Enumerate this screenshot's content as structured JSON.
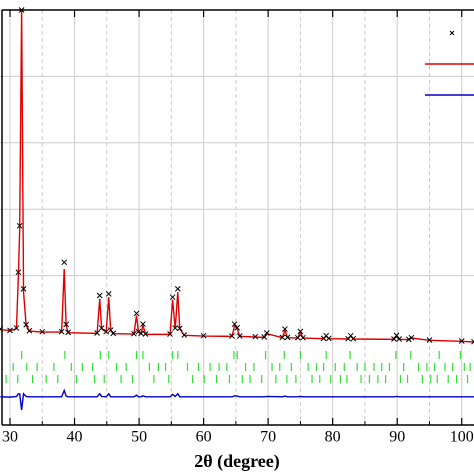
{
  "chart_data": {
    "type": "line",
    "xlabel": "2θ (degree)",
    "xlim": [
      28.45,
      101.9
    ],
    "ylim": [
      -25,
      100
    ],
    "xticks": [
      30,
      40,
      50,
      60,
      70,
      80,
      90,
      100
    ],
    "xminor": [
      35,
      45,
      55,
      65,
      75,
      85,
      95
    ],
    "ygrid": [
      100,
      80,
      60,
      40,
      20
    ],
    "grid": true,
    "x": [
      28.5,
      30,
      31,
      31.3,
      31.5,
      31.8,
      32.1,
      32.5,
      33,
      35,
      38,
      38.4,
      38.7,
      39,
      43.5,
      43.9,
      44.2,
      44.9,
      45.3,
      45.6,
      46,
      49.2,
      49.6,
      49.9,
      50.3,
      50.6,
      51,
      54.8,
      55.2,
      55.6,
      56,
      56.3,
      57,
      60,
      64.4,
      64.8,
      65.2,
      65.6,
      68,
      69.4,
      69.8,
      72.2,
      72.6,
      73,
      74.6,
      75,
      75.4,
      78.6,
      79,
      79.4,
      82.4,
      82.8,
      83.2,
      89.5,
      89.9,
      90.3,
      91.8,
      92.2,
      95,
      100,
      101.9
    ],
    "series": [
      {
        "marker": "x",
        "color": "#000000",
        "values": [
          3.9,
          3.5,
          4.2,
          21,
          35,
          100,
          16,
          5.2,
          3.4,
          3.1,
          3.1,
          24,
          5.3,
          2.9,
          2.7,
          14,
          4.2,
          3.1,
          14.5,
          3.6,
          2.6,
          2.5,
          8.6,
          3.1,
          2.6,
          5.4,
          2.4,
          2.4,
          13.5,
          4.2,
          16,
          4.1,
          2.1,
          1.9,
          1.8,
          5.4,
          4.3,
          1.8,
          1.6,
          1.5,
          2.7,
          1.4,
          3.9,
          1.4,
          1.3,
          3.2,
          1.3,
          1.1,
          1.9,
          1.1,
          1,
          1.9,
          1,
          0.9,
          2,
          0.9,
          0.8,
          1.3,
          0.6,
          0.3,
          0.1
        ]
      },
      {
        "color": "#dd0000",
        "values": [
          3.8,
          3.4,
          4,
          20,
          34,
          100,
          15,
          5,
          3.3,
          3,
          3,
          22,
          5,
          2.8,
          2.6,
          13,
          4,
          3,
          13.5,
          3.5,
          2.5,
          2.4,
          8,
          3,
          2.5,
          5,
          2.3,
          2.3,
          12.7,
          4,
          15,
          4,
          2,
          1.8,
          1.7,
          5,
          4,
          1.7,
          1.5,
          1.4,
          2.5,
          1.3,
          3.6,
          1.3,
          1.2,
          3,
          1.2,
          1,
          1.8,
          1,
          0.9,
          1.8,
          0.9,
          0.8,
          1.8,
          0.8,
          0.7,
          1.2,
          0.5,
          0.2,
          0
        ]
      },
      {
        "color": "#0000cc",
        "values": [
          -16.5,
          -16.6,
          -16.4,
          -15.6,
          -15.6,
          -20.5,
          -15.6,
          -16.4,
          -16.5,
          -16.5,
          -16.5,
          -14.6,
          -16.3,
          -16.5,
          -16.5,
          -15.6,
          -16.4,
          -16.5,
          -15.6,
          -16.5,
          -16.5,
          -16.5,
          -16,
          -16.5,
          -16.5,
          -16.2,
          -16.5,
          -16.5,
          -15.8,
          -16.4,
          -15.6,
          -16.5,
          -16.5,
          -16.5,
          -16.5,
          -16.2,
          -16.3,
          -16.5,
          -16.5,
          -16.5,
          -16.4,
          -16.5,
          -16.3,
          -16.5,
          -16.5,
          -16.4,
          -16.5,
          -16.5,
          -16.5,
          -16.5,
          -16.5,
          -16.5,
          -16.5,
          -16.5,
          -16.4,
          -16.5,
          -16.5,
          -16.5,
          -16.5,
          -16.5,
          -16.5
        ]
      }
    ],
    "bragg_ticks": [
      {
        "color": "#33dd33",
        "positions": [
          31.8,
          38.5,
          44,
          45.3,
          49.6,
          50.6,
          55.2,
          56,
          64.7,
          65.2,
          69.6,
          72.5,
          75,
          79,
          82.7,
          89.8,
          92.1,
          96.5,
          99.8
        ]
      },
      {
        "color": "#33dd33",
        "positions": [
          30.5,
          32.6,
          34.2,
          36.8,
          39.5,
          41.2,
          42.8,
          46.5,
          48,
          51.6,
          53,
          54.1,
          57.5,
          59.2,
          61,
          62.4,
          63.6,
          66.5,
          67.8,
          70.6,
          71.8,
          73.6,
          76.2,
          77.5,
          78.6,
          80.4,
          81.8,
          83.8,
          85,
          86.4,
          87.6,
          88.8,
          91,
          93.3,
          94.6,
          95.8,
          97.4,
          98.6,
          100.4,
          101.3
        ]
      },
      {
        "color": "#33dd33",
        "positions": [
          29.4,
          31.2,
          33.5,
          35.6,
          37.4,
          40.3,
          43.1,
          44.6,
          47.2,
          49,
          52.3,
          54.6,
          58.3,
          60.1,
          62,
          64,
          66,
          67.2,
          69,
          71.2,
          72.9,
          74.3,
          76.8,
          78,
          79.7,
          81.2,
          82.2,
          84.4,
          85.7,
          87,
          88.2,
          90.5,
          91.6,
          93.9,
          95.2,
          96.2,
          97.9,
          99.2,
          100.9
        ]
      }
    ]
  }
}
